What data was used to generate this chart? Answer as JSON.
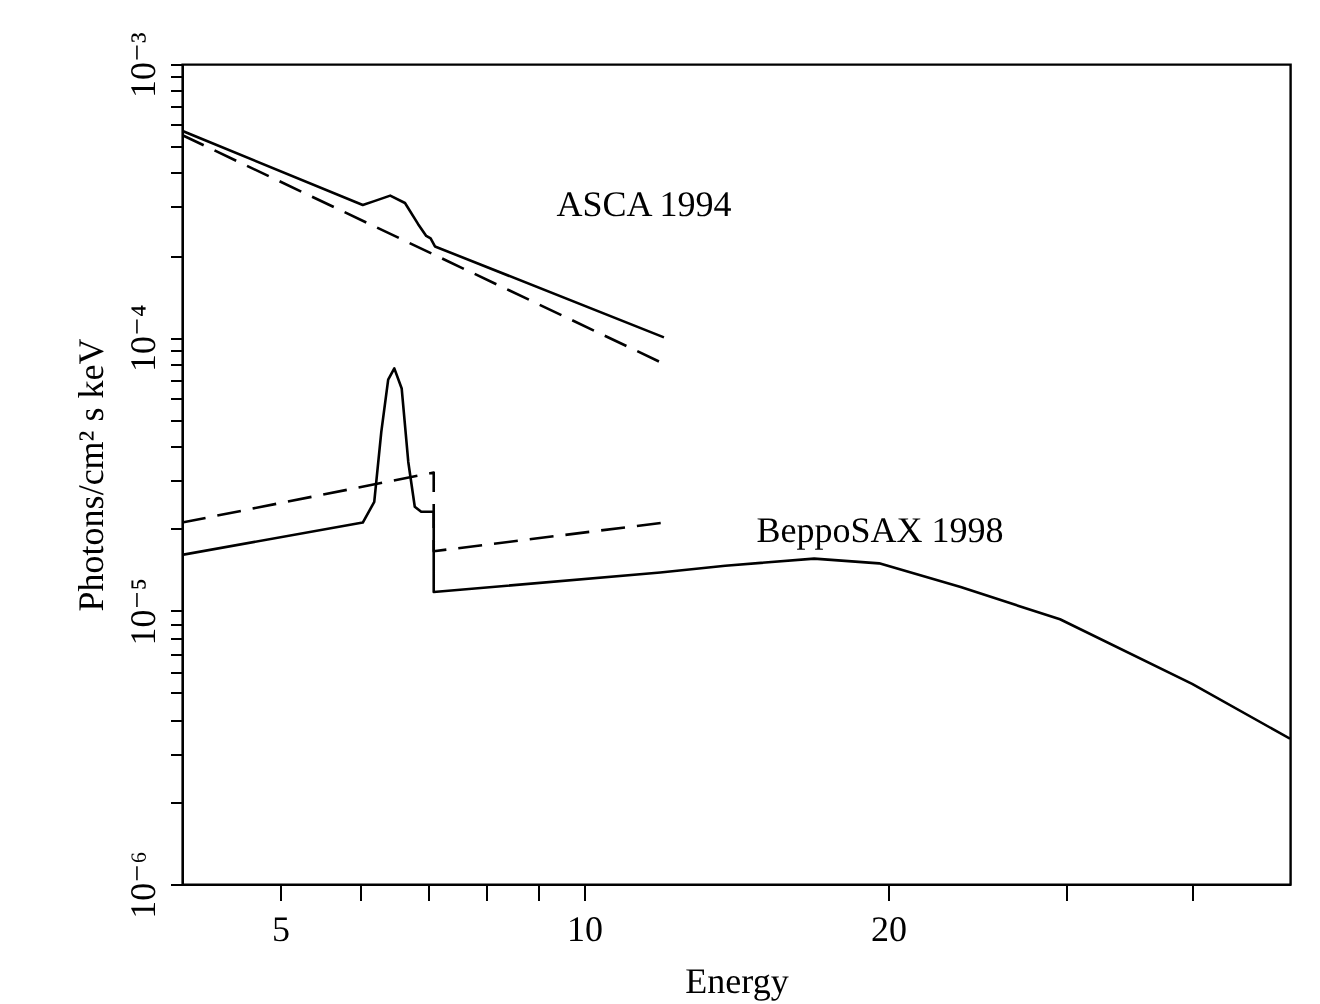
{
  "chart_data": {
    "type": "line",
    "xlabel": "Energy",
    "ylabel": "Photons/cm² s keV",
    "log": "xy",
    "grid": false,
    "marker": "none",
    "xlim": [
      4,
      50
    ],
    "xticks": [
      5,
      {
        "value": 6,
        "label": null
      },
      {
        "value": 7,
        "label": null
      },
      {
        "value": 8,
        "label": null
      },
      {
        "value": 9,
        "label": null
      },
      10,
      20,
      {
        "value": 30,
        "label": null
      },
      {
        "value": 40,
        "label": null
      }
    ],
    "ylim": [
      1e-06,
      0.001
    ],
    "yticks": [
      {
        "value": 1e-06,
        "label": "10⁻⁶"
      },
      {
        "value": 2e-06,
        "label": null
      },
      {
        "value": 3e-06,
        "label": null
      },
      {
        "value": 4e-06,
        "label": null
      },
      {
        "value": 5e-06,
        "label": null
      },
      {
        "value": 6e-06,
        "label": null
      },
      {
        "value": 7e-06,
        "label": null
      },
      {
        "value": 8e-06,
        "label": null
      },
      {
        "value": 9e-06,
        "label": null
      },
      {
        "value": 1e-05,
        "label": "10⁻⁵"
      },
      {
        "value": 2e-05,
        "label": null
      },
      {
        "value": 3e-05,
        "label": null
      },
      {
        "value": 4e-05,
        "label": null
      },
      {
        "value": 5e-05,
        "label": null
      },
      {
        "value": 6e-05,
        "label": null
      },
      {
        "value": 7e-05,
        "label": null
      },
      {
        "value": 8e-05,
        "label": null
      },
      {
        "value": 9e-05,
        "label": null
      },
      {
        "value": 0.0001,
        "label": "10⁻⁴"
      },
      {
        "value": 0.0002,
        "label": null
      },
      {
        "value": 0.0003,
        "label": null
      },
      {
        "value": 0.0004,
        "label": null
      },
      {
        "value": 0.0005,
        "label": null
      },
      {
        "value": 0.0006,
        "label": null
      },
      {
        "value": 0.0007,
        "label": null
      },
      {
        "value": 0.0008,
        "label": null
      },
      {
        "value": 0.0009,
        "label": null
      },
      {
        "value": 0.001,
        "label": "10⁻³"
      }
    ],
    "series": [
      {
        "color": "#000000",
        "line_style": "solid",
        "x": [
          4,
          6.04,
          6.2,
          6.43,
          6.65,
          6.85,
          6.98,
          7.05,
          7.12,
          12
        ],
        "values": [
          0.00057,
          0.000305,
          0.000315,
          0.00033,
          0.00031,
          0.00026,
          0.000235,
          0.00023,
          0.000215,
          0.0001
        ]
      },
      {
        "color": "#000000",
        "line_style": "dashed",
        "x": [
          4,
          12
        ],
        "values": [
          0.00055,
          8e-05
        ]
      },
      {
        "color": "#000000",
        "line_style": "solid",
        "x": [
          4,
          6.04,
          6.2,
          6.3,
          6.4,
          6.49,
          6.6,
          6.7,
          6.8,
          6.9,
          7.1,
          7.1,
          11.9,
          13.8,
          16.9,
          19.6,
          23.6,
          29.6,
          40,
          50
        ],
        "values": [
          1.6e-05,
          2.1e-05,
          2.5e-05,
          4.5e-05,
          7e-05,
          7.7e-05,
          6.5e-05,
          3.5e-05,
          2.4e-05,
          2.3e-05,
          2.3e-05,
          1.17e-05,
          1.38e-05,
          1.46e-05,
          1.55e-05,
          1.49e-05,
          1.22e-05,
          9.3e-06,
          5.4e-06,
          3.4e-06
        ]
      },
      {
        "color": "#000000",
        "line_style": "dashed",
        "x": [
          4,
          7.1,
          7.1,
          12
        ],
        "values": [
          2.1e-05,
          3.2e-05,
          1.65e-05,
          2.1e-05
        ]
      }
    ],
    "annotations": [
      "ASCA 1994",
      "BeppoSAX 1998"
    ]
  }
}
